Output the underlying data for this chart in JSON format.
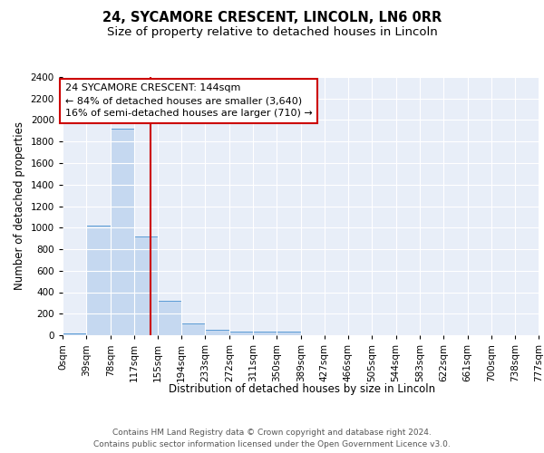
{
  "title_line1": "24, SYCAMORE CRESCENT, LINCOLN, LN6 0RR",
  "title_line2": "Size of property relative to detached houses in Lincoln",
  "xlabel": "Distribution of detached houses by size in Lincoln",
  "ylabel": "Number of detached properties",
  "bin_edges": [
    0,
    39,
    78,
    117,
    155,
    194,
    233,
    272,
    311,
    350,
    389,
    427,
    466,
    505,
    544,
    583,
    622,
    661,
    700,
    738,
    777
  ],
  "bin_labels": [
    "0sqm",
    "39sqm",
    "78sqm",
    "117sqm",
    "155sqm",
    "194sqm",
    "233sqm",
    "272sqm",
    "311sqm",
    "350sqm",
    "389sqm",
    "427sqm",
    "466sqm",
    "505sqm",
    "544sqm",
    "583sqm",
    "622sqm",
    "661sqm",
    "700sqm",
    "738sqm",
    "777sqm"
  ],
  "bar_heights": [
    20,
    1020,
    1920,
    920,
    320,
    110,
    50,
    30,
    30,
    30,
    0,
    0,
    0,
    0,
    0,
    0,
    0,
    0,
    0,
    0
  ],
  "bar_color": "#c5d8f0",
  "bar_edge_color": "#5b9bd5",
  "background_color": "#e8eef8",
  "grid_color": "#ffffff",
  "red_line_x": 144,
  "red_line_color": "#cc0000",
  "annotation_text": "24 SYCAMORE CRESCENT: 144sqm\n← 84% of detached houses are smaller (3,640)\n16% of semi-detached houses are larger (710) →",
  "annotation_box_color": "#ffffff",
  "annotation_box_edge_color": "#cc0000",
  "ylim": [
    0,
    2400
  ],
  "yticks": [
    0,
    200,
    400,
    600,
    800,
    1000,
    1200,
    1400,
    1600,
    1800,
    2000,
    2200,
    2400
  ],
  "footer_text": "Contains HM Land Registry data © Crown copyright and database right 2024.\nContains public sector information licensed under the Open Government Licence v3.0.",
  "title_fontsize": 10.5,
  "subtitle_fontsize": 9.5,
  "axis_label_fontsize": 8.5,
  "tick_fontsize": 7.5,
  "annotation_fontsize": 8,
  "footer_fontsize": 6.5
}
